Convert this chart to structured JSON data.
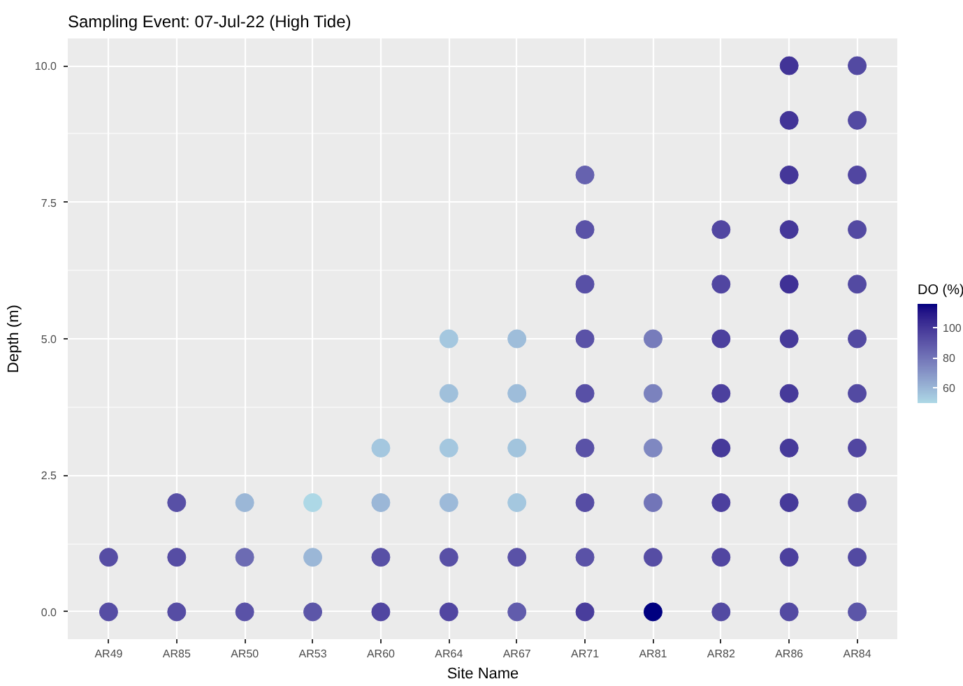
{
  "chart_data": {
    "type": "scatter",
    "title": "Sampling Event: 07-Jul-22 (High Tide)",
    "xlabel": "Site Name",
    "ylabel": "Depth (m)",
    "clabel": "DO (%)",
    "categories": [
      "AR49",
      "AR85",
      "AR50",
      "AR53",
      "AR60",
      "AR64",
      "AR67",
      "AR71",
      "AR81",
      "AR82",
      "AR86",
      "AR84"
    ],
    "series": [
      {
        "x": [
          "AR49",
          "AR49",
          "AR85",
          "AR85",
          "AR85",
          "AR50",
          "AR50",
          "AR50",
          "AR53",
          "AR53",
          "AR53",
          "AR60",
          "AR60",
          "AR60",
          "AR60",
          "AR64",
          "AR64",
          "AR64",
          "AR64",
          "AR64",
          "AR64",
          "AR67",
          "AR67",
          "AR67",
          "AR67",
          "AR67",
          "AR67",
          "AR71",
          "AR71",
          "AR71",
          "AR71",
          "AR71",
          "AR71",
          "AR71",
          "AR71",
          "AR71",
          "AR81",
          "AR81",
          "AR81",
          "AR81",
          "AR81",
          "AR81",
          "AR82",
          "AR82",
          "AR82",
          "AR82",
          "AR82",
          "AR82",
          "AR82",
          "AR82",
          "AR86",
          "AR86",
          "AR86",
          "AR86",
          "AR86",
          "AR86",
          "AR86",
          "AR86",
          "AR86",
          "AR86",
          "AR86",
          "AR84",
          "AR84",
          "AR84",
          "AR84",
          "AR84",
          "AR84",
          "AR84",
          "AR84",
          "AR84",
          "AR84",
          "AR84"
        ],
        "values": [
          0,
          1,
          0,
          1,
          2,
          0,
          1,
          2,
          0,
          1,
          2,
          0,
          1,
          2,
          3,
          0,
          1,
          2,
          3,
          4,
          5,
          0,
          1,
          2,
          3,
          4,
          5,
          0,
          1,
          2,
          3,
          4,
          5,
          6,
          7,
          8,
          0,
          1,
          2,
          3,
          4,
          5,
          0,
          1,
          2,
          3,
          4,
          5,
          6,
          7,
          0,
          1,
          2,
          3,
          4,
          5,
          6,
          7,
          8,
          9,
          10,
          0,
          1,
          2,
          3,
          4,
          5,
          6,
          7,
          8,
          9,
          10
        ],
        "cvalues": [
          93,
          93,
          93,
          93,
          92,
          91,
          83,
          60,
          90,
          60,
          50,
          95,
          92,
          60,
          55,
          95,
          92,
          59,
          55,
          57,
          55,
          88,
          91,
          55,
          56,
          58,
          58,
          98,
          91,
          93,
          91,
          92,
          91,
          92,
          91,
          86,
          116,
          93,
          80,
          74,
          76,
          78,
          94,
          95,
          97,
          99,
          97,
          97,
          95,
          95,
          94,
          97,
          99,
          99,
          99,
          99,
          102,
          100,
          100,
          101,
          101,
          90,
          94,
          93,
          95,
          94,
          94,
          94,
          94,
          95,
          94,
          94
        ]
      }
    ],
    "colors": [
      "#add8e6",
      "#000080"
    ],
    "clim": [
      50,
      116
    ],
    "cticks": [
      60,
      80,
      100
    ],
    "ylim": [
      -0.5,
      10.5
    ],
    "yticks": [
      {
        "value": 0,
        "label": "0.0"
      },
      {
        "value": 2.5,
        "label": "2.5"
      },
      {
        "value": 5,
        "label": "5.0"
      },
      {
        "value": 7.5,
        "label": "7.5"
      },
      {
        "value": 10,
        "label": "10.0"
      }
    ],
    "grid": true,
    "marker": "circle"
  }
}
